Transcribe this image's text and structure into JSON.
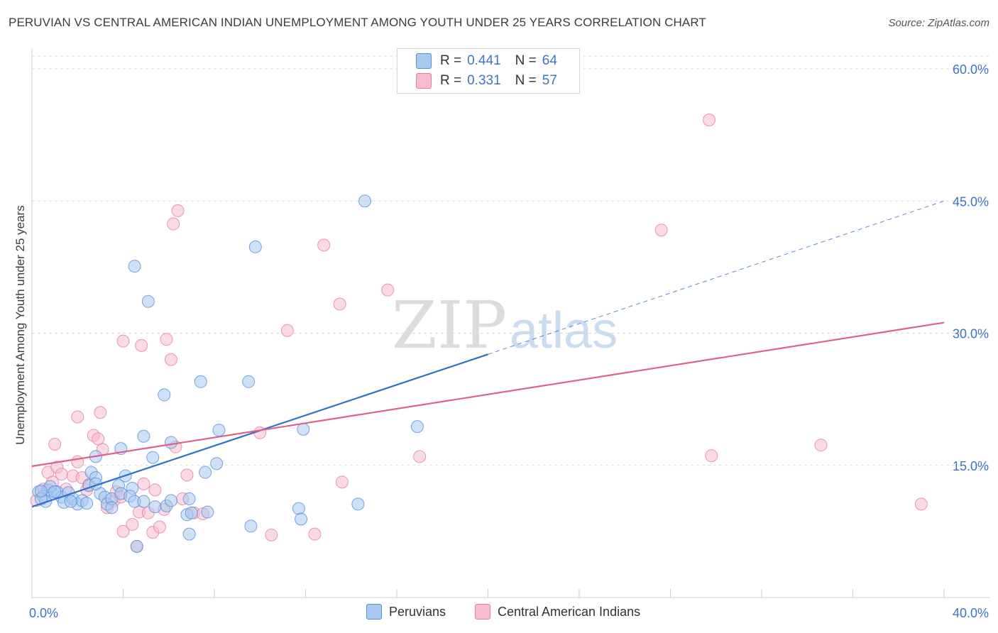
{
  "title": "PERUVIAN VS CENTRAL AMERICAN INDIAN UNEMPLOYMENT AMONG YOUTH UNDER 25 YEARS CORRELATION CHART",
  "source": "Source: ZipAtlas.com",
  "watermark": {
    "zip": "ZIP",
    "atlas": "atlas"
  },
  "legend": {
    "r_label": "R =",
    "n_label": "N =",
    "rows": [
      {
        "r": "0.441",
        "n": "64",
        "color": "#a8c8f0"
      },
      {
        "r": "0.331",
        "n": "57",
        "color": "#f7bcd0"
      }
    ]
  },
  "bottom_legend": [
    {
      "label": "Peruvians",
      "color": "#a8c8f0"
    },
    {
      "label": "Central American Indians",
      "color": "#f7bcd0"
    }
  ],
  "colors": {
    "blue_fill": "#a8c8f0",
    "blue_stroke": "#5b8fd6",
    "blue_line": "#2d6fcc",
    "pink_fill": "#f7bcd0",
    "pink_stroke": "#e37ea0",
    "pink_line": "#e0608c",
    "grid": "#d9d9d9",
    "tick_text": "#3d74c8"
  },
  "chart_data": {
    "type": "scatter",
    "title": "PERUVIAN VS CENTRAL AMERICAN INDIAN UNEMPLOYMENT AMONG YOUTH UNDER 25 YEARS CORRELATION CHART",
    "xlabel": "",
    "ylabel": "Unemployment Among Youth under 25 years",
    "xlim": [
      0,
      40
    ],
    "ylim": [
      0,
      60
    ],
    "x_tick_labels": [
      {
        "value": 0,
        "label": "0.0%"
      },
      {
        "value": 40,
        "label": "40.0%"
      }
    ],
    "y_tick_labels": [
      {
        "value": 15,
        "label": "15.0%"
      },
      {
        "value": 30,
        "label": "30.0%"
      },
      {
        "value": 45,
        "label": "45.0%"
      },
      {
        "value": 60,
        "label": "60.0%"
      }
    ],
    "series": [
      {
        "name": "Peruvians",
        "r": 0.441,
        "n": 64,
        "trend": {
          "x0": 0,
          "y0": 10.3,
          "x1": 20,
          "y1": 27.6,
          "x_dash_end": 40,
          "y_dash_end": 45.0
        },
        "points": [
          [
            0.3,
            12.0
          ],
          [
            0.5,
            11.5
          ],
          [
            0.7,
            12.2
          ],
          [
            0.9,
            11.8
          ],
          [
            0.6,
            10.9
          ],
          [
            0.4,
            11.2
          ],
          [
            1.1,
            12.0
          ],
          [
            0.8,
            12.6
          ],
          [
            1.3,
            11.4
          ],
          [
            1.6,
            11.9
          ],
          [
            1.4,
            10.8
          ],
          [
            1.8,
            11.2
          ],
          [
            2.0,
            10.6
          ],
          [
            2.2,
            11.0
          ],
          [
            1.7,
            10.9
          ],
          [
            2.5,
            12.7
          ],
          [
            2.4,
            10.7
          ],
          [
            2.6,
            14.2
          ],
          [
            2.8,
            13.6
          ],
          [
            3.0,
            11.8
          ],
          [
            3.2,
            11.4
          ],
          [
            3.3,
            10.6
          ],
          [
            3.5,
            11.2
          ],
          [
            3.8,
            12.7
          ],
          [
            3.9,
            11.8
          ],
          [
            4.1,
            13.8
          ],
          [
            4.4,
            12.4
          ],
          [
            4.3,
            11.5
          ],
          [
            4.5,
            10.9
          ],
          [
            4.9,
            10.9
          ],
          [
            3.5,
            10.2
          ],
          [
            2.8,
            16.0
          ],
          [
            4.5,
            37.6
          ],
          [
            5.1,
            33.6
          ],
          [
            5.4,
            10.3
          ],
          [
            5.9,
            10.4
          ],
          [
            6.1,
            17.6
          ],
          [
            5.8,
            23.0
          ],
          [
            7.4,
            24.5
          ],
          [
            6.9,
            11.2
          ],
          [
            5.3,
            15.9
          ],
          [
            4.9,
            18.3
          ],
          [
            6.8,
            9.4
          ],
          [
            7.0,
            9.6
          ],
          [
            7.6,
            14.2
          ],
          [
            8.1,
            15.2
          ],
          [
            8.2,
            19.0
          ],
          [
            9.8,
            39.8
          ],
          [
            9.5,
            24.5
          ],
          [
            11.9,
            19.1
          ],
          [
            14.6,
            45.0
          ],
          [
            16.9,
            19.4
          ],
          [
            11.7,
            10.1
          ],
          [
            11.8,
            8.9
          ],
          [
            14.3,
            10.6
          ],
          [
            9.6,
            8.1
          ],
          [
            6.9,
            7.2
          ],
          [
            4.6,
            5.8
          ],
          [
            2.8,
            12.9
          ],
          [
            3.9,
            16.9
          ],
          [
            6.1,
            11.0
          ],
          [
            1.0,
            12.0
          ],
          [
            0.4,
            12.1
          ],
          [
            7.7,
            9.7
          ]
        ]
      },
      {
        "name": "Central American Indians",
        "r": 0.331,
        "n": 57,
        "trend": {
          "x0": 0,
          "y0": 14.9,
          "x1": 40,
          "y1": 31.2
        },
        "points": [
          [
            0.2,
            11.0
          ],
          [
            0.5,
            12.3
          ],
          [
            0.7,
            14.2
          ],
          [
            0.9,
            13.1
          ],
          [
            1.1,
            14.8
          ],
          [
            1.3,
            14.0
          ],
          [
            1.5,
            12.3
          ],
          [
            1.8,
            13.8
          ],
          [
            2.0,
            15.4
          ],
          [
            2.2,
            13.6
          ],
          [
            2.4,
            12.2
          ],
          [
            2.5,
            12.8
          ],
          [
            2.7,
            18.4
          ],
          [
            2.9,
            18.0
          ],
          [
            3.1,
            16.8
          ],
          [
            3.3,
            10.2
          ],
          [
            3.6,
            11.0
          ],
          [
            3.7,
            12.0
          ],
          [
            3.9,
            11.4
          ],
          [
            4.0,
            7.5
          ],
          [
            4.4,
            8.3
          ],
          [
            4.7,
            9.7
          ],
          [
            4.9,
            12.9
          ],
          [
            5.1,
            9.6
          ],
          [
            5.3,
            7.4
          ],
          [
            5.6,
            8.0
          ],
          [
            5.8,
            10.0
          ],
          [
            6.3,
            17.1
          ],
          [
            6.6,
            11.2
          ],
          [
            6.8,
            13.9
          ],
          [
            7.1,
            9.6
          ],
          [
            5.4,
            12.2
          ],
          [
            4.0,
            29.1
          ],
          [
            4.8,
            28.6
          ],
          [
            5.9,
            29.3
          ],
          [
            6.1,
            27.0
          ],
          [
            6.2,
            42.4
          ],
          [
            6.4,
            43.9
          ],
          [
            10.0,
            18.7
          ],
          [
            11.2,
            30.3
          ],
          [
            12.8,
            40.0
          ],
          [
            13.5,
            33.3
          ],
          [
            13.6,
            13.1
          ],
          [
            15.6,
            34.9
          ],
          [
            17.0,
            16.0
          ],
          [
            27.6,
            41.7
          ],
          [
            29.8,
            16.1
          ],
          [
            29.7,
            54.2
          ],
          [
            34.6,
            17.3
          ],
          [
            39.0,
            10.6
          ],
          [
            10.5,
            7.1
          ],
          [
            12.4,
            7.2
          ],
          [
            2.0,
            20.5
          ],
          [
            3.0,
            21.0
          ],
          [
            1.0,
            17.4
          ],
          [
            4.6,
            5.8
          ],
          [
            7.5,
            9.5
          ]
        ]
      }
    ]
  }
}
